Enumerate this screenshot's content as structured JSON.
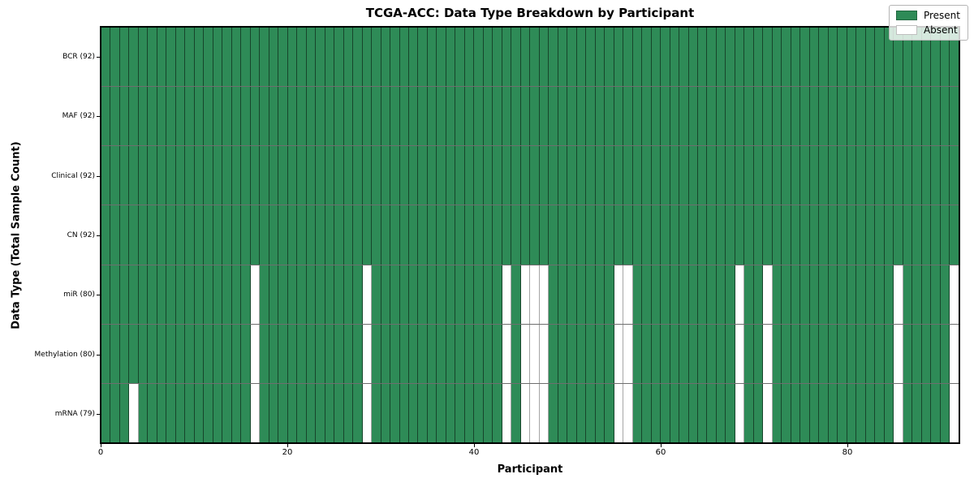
{
  "chart_data": {
    "type": "heatmap",
    "title": "TCGA-ACC: Data Type Breakdown by Participant",
    "xlabel": "Participant",
    "ylabel": "Data Type (Total Sample Count)",
    "n_participants": 92,
    "x_ticks": [
      0,
      20,
      40,
      60,
      80
    ],
    "grid": "cell borders visible, no gridlines",
    "legend_position": "upper right",
    "colors": {
      "present": "#2e8b57",
      "absent": "#ffffff"
    },
    "legend": [
      {
        "label": "Present",
        "color": "#2e8b57"
      },
      {
        "label": "Absent",
        "color": "#ffffff"
      }
    ],
    "rows": [
      {
        "label": "BCR (92)",
        "data_type": "BCR",
        "present_count": 92,
        "absent_participants": []
      },
      {
        "label": "MAF (92)",
        "data_type": "MAF",
        "present_count": 92,
        "absent_participants": []
      },
      {
        "label": "Clinical (92)",
        "data_type": "Clinical",
        "present_count": 92,
        "absent_participants": []
      },
      {
        "label": "CN (92)",
        "data_type": "CN",
        "present_count": 92,
        "absent_participants": []
      },
      {
        "label": "miR (80)",
        "data_type": "miR",
        "present_count": 80,
        "absent_participants": [
          16,
          28,
          43,
          45,
          46,
          47,
          55,
          56,
          68,
          71,
          85,
          91
        ]
      },
      {
        "label": "Methylation (80)",
        "data_type": "Methylation",
        "present_count": 80,
        "absent_participants": [
          16,
          28,
          43,
          45,
          46,
          47,
          55,
          56,
          68,
          71,
          85,
          91
        ]
      },
      {
        "label": "mRNA (79)",
        "data_type": "mRNA",
        "present_count": 79,
        "absent_participants": [
          3,
          16,
          28,
          43,
          45,
          46,
          47,
          55,
          56,
          68,
          71,
          85,
          91
        ]
      }
    ]
  }
}
